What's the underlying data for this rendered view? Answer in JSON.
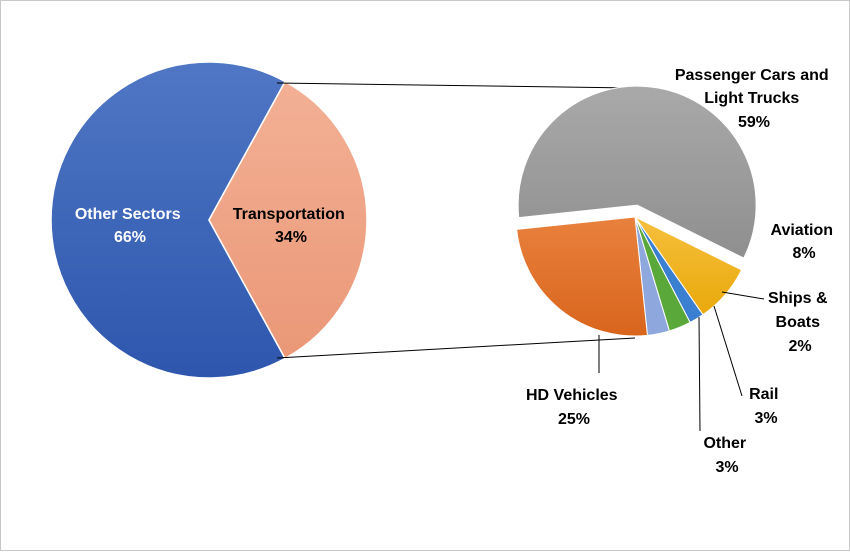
{
  "chart_data": [
    {
      "type": "pie",
      "title": "",
      "slices": [
        {
          "name": "Other Sectors",
          "value": 66,
          "label": "66%",
          "color": "#3a62b8"
        },
        {
          "name": "Transportation",
          "value": 34,
          "label": "34%",
          "color": "#f0a586"
        }
      ]
    },
    {
      "type": "pie",
      "title": "",
      "slices": [
        {
          "name": "Passenger Cars and Light Trucks",
          "name_lines": [
            "Passenger Cars and",
            "Light Trucks"
          ],
          "value": 59,
          "label": "59%",
          "color": "#a6a6a6",
          "exploded": true
        },
        {
          "name": "Aviation",
          "name_lines": [
            "Aviation"
          ],
          "value": 8,
          "label": "8%",
          "color": "#f2b21e"
        },
        {
          "name": "Ships & Boats",
          "name_lines": [
            "Ships &",
            "Boats"
          ],
          "value": 2,
          "label": "2%",
          "color": "#3a7fd0"
        },
        {
          "name": "Rail",
          "name_lines": [
            "Rail"
          ],
          "value": 3,
          "label": "3%",
          "color": "#5aa83a"
        },
        {
          "name": "Other",
          "name_lines": [
            "Other"
          ],
          "value": 3,
          "label": "3%",
          "color": "#8ea7dd"
        },
        {
          "name": "HD Vehicles",
          "name_lines": [
            "HD Vehicles"
          ],
          "value": 25,
          "label": "25%",
          "color": "#e2702a"
        }
      ]
    }
  ]
}
